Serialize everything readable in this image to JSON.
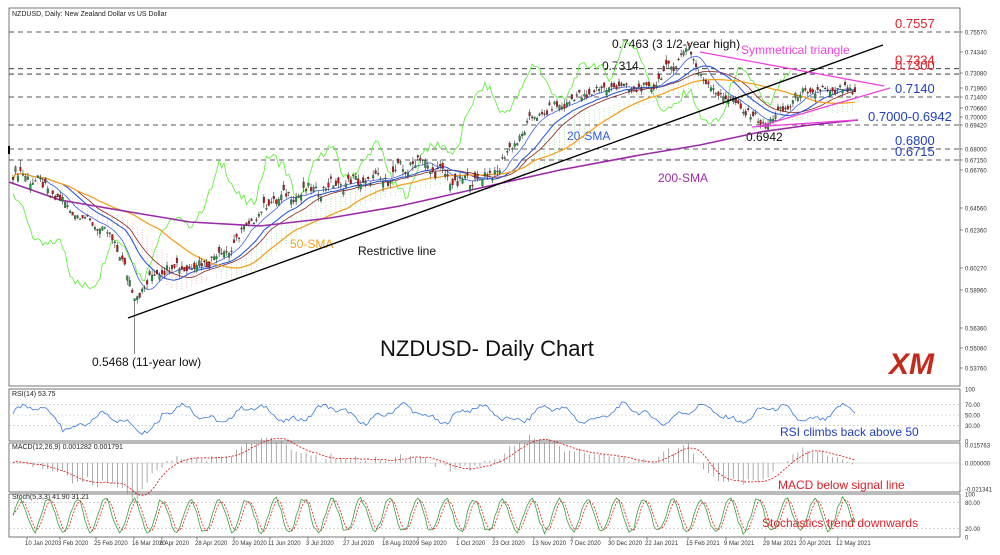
{
  "header": {
    "main_label": "NZDUSD, Daily:  New Zealand Dollar vs US Dollar",
    "rsi_label": "RSI(14) 53.75",
    "macd_label": "MACD(12,26,9) 0.001282 0.001791",
    "stoch_label": "Stoch(5,3,3) 41.90 31.21"
  },
  "colors": {
    "background": "#ffffff",
    "candle_up": "#20a040",
    "candle_down": "#c01818",
    "grid": "#d8d8d8",
    "level_line": "#222222",
    "level_label_red": "#e0202a",
    "level_label_dark": "#222222",
    "level_label_blue": "#2040c0",
    "sma20": "#2b5bd6",
    "sma50": "#f4a020",
    "sma200": "#9a2aa8",
    "chikou": "#66ee44",
    "cloud_green": "#6acb6a",
    "cloud_red": "#e07070",
    "trendline": "#000000",
    "triangle": "#f040e0",
    "rsi_line": "#3a7ad8",
    "macd_hist": "#888888",
    "macd_signal": "#e02020",
    "stoch_k": "#3aa03a",
    "stoch_d": "#e02020",
    "xm_logo": "#c42a1a",
    "annotation_blue": "#2040c0",
    "annotation_red": "#e0202a"
  },
  "title": "NZDUSD- Daily Chart",
  "logo_text": "XM",
  "annotations": {
    "high": "0.7463 (3 1/2-year high)",
    "peak": "0.7314",
    "low": "0.5468 (11-year low)",
    "dip": "0.6942",
    "triangle": "Symmetrical triangle",
    "sma20": "20-SMA",
    "sma50": "50-SMA",
    "sma200": "200-SMA",
    "restrictive": "Restrictive line",
    "rsi": "RSI climbs  back above 50",
    "macd": "MACD below signal line",
    "stoch": "Stochastics trend downwards"
  },
  "levels": [
    {
      "label": "0.7557",
      "value": 0.7557,
      "color": "red"
    },
    {
      "label": "0.7334",
      "value": 0.7334,
      "color": "red"
    },
    {
      "label": "0.7300",
      "value": 0.73,
      "color": "red"
    },
    {
      "label": "0.7140",
      "value": 0.714,
      "color": "blue"
    },
    {
      "label": "0.7000-0.6942",
      "value": 0.6942,
      "color": "blue"
    },
    {
      "label": "0.6800",
      "value": 0.68,
      "color": "blue"
    },
    {
      "label": "0.6715",
      "value": 0.6715,
      "color": "blue"
    }
  ],
  "price_axis": [
    "0.75570",
    "0.74340",
    "0.73080",
    "0.71960",
    "0.71400",
    "0.70660",
    "0.70000",
    "0.69420",
    "0.68000",
    "0.67150",
    "0.66760",
    "0.64560",
    "0.62360",
    "0.60270",
    "0.58960",
    "0.56360",
    "0.55060",
    "0.53760"
  ],
  "rsi_axis": [
    "100",
    "70.00",
    "50.00",
    "30.00",
    "0"
  ],
  "macd_axis": [
    "0.015763",
    "0.000000",
    "-0.021341"
  ],
  "stoch_axis": [
    "100",
    "80.00",
    "20.00",
    "0"
  ],
  "date_axis": [
    "10 Jan 2020",
    "3 Feb 2020",
    "25 Feb 2020",
    "16 Mar 2020",
    "6 Apr 2020",
    "28 Apr 2020",
    "20 May 2020",
    "11 Jun 2020",
    "3 Jul 2020",
    "27 Jul 2020",
    "18 Aug 2020",
    "9 Sep 2020",
    "1 Oct 2020",
    "23 Oct 2020",
    "13 Nov 2020",
    "7 Dec 2020",
    "30 Dec 2020",
    "22 Jan 2021",
    "15 Feb 2021",
    "9 Mar 2021",
    "29 Mar 2021",
    "20 Apr 2021",
    "12 May 2021"
  ],
  "chart_data": {
    "type": "candlestick",
    "title": "NZDUSD- Daily Chart",
    "x_range": [
      "10 Jan 2020",
      "May 2021"
    ],
    "ylim": [
      0.5376,
      0.7557
    ],
    "anchor_path": {
      "x": [
        "10 Jan 2020",
        "3 Feb 2020",
        "25 Feb 2020",
        "9 Mar 2020",
        "16 Mar 2020",
        "6 Apr 2020",
        "28 Apr 2020",
        "20 May 2020",
        "11 Jun 2020",
        "3 Jul 2020",
        "27 Jul 2020",
        "18 Aug 2020",
        "9 Sep 2020",
        "1 Oct 2020",
        "23 Oct 2020",
        "13 Nov 2020",
        "7 Dec 2020",
        "30 Dec 2020",
        "22 Jan 2021",
        "15 Feb 2021",
        "25 Feb 2021",
        "9 Mar 2021",
        "29 Mar 2021",
        "20 Apr 2021",
        "12 May 2021",
        "21 May 2021"
      ],
      "close": [
        0.665,
        0.65,
        0.628,
        0.612,
        0.585,
        0.603,
        0.604,
        0.615,
        0.65,
        0.655,
        0.66,
        0.662,
        0.672,
        0.66,
        0.665,
        0.7,
        0.712,
        0.721,
        0.718,
        0.7463,
        0.722,
        0.714,
        0.6942,
        0.716,
        0.718,
        0.717
      ]
    },
    "marked_points": [
      {
        "label": "0.5468 (11-year low)",
        "value": 0.5468
      },
      {
        "label": "0.7314",
        "value": 0.7314
      },
      {
        "label": "0.7463 (3 1/2-year high)",
        "value": 0.7463
      },
      {
        "label": "0.6942",
        "value": 0.6942
      }
    ],
    "indicators": {
      "rsi14_last": 53.75,
      "macd": {
        "macd": 0.001282,
        "signal": 0.001791
      },
      "stoch": {
        "k": 41.9,
        "d": 31.21
      }
    }
  }
}
